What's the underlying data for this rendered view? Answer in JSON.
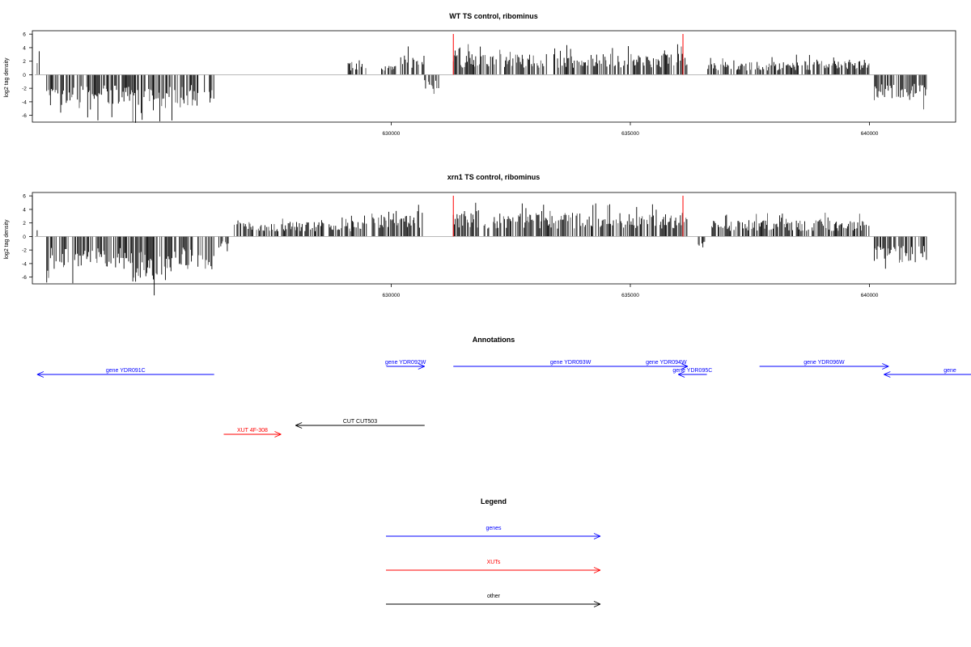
{
  "chart_data": [
    {
      "type": "bar",
      "title": "WT TS control, ribominus",
      "xlabel": "",
      "ylabel": "log2 tag density",
      "xlim": [
        622500,
        641800
      ],
      "ylim": [
        -7,
        6.5
      ],
      "x_ticks": [
        "630000",
        "635000",
        "640000"
      ],
      "y_ticks": [
        "6",
        "4",
        "2",
        "0",
        "-2",
        "-4",
        "-6"
      ],
      "marker_lines": [
        631300,
        636100
      ],
      "segments": [
        {
          "from": 622600,
          "to": 622650,
          "mean": 1.8
        },
        {
          "from": 622800,
          "to": 624600,
          "mean": -3.4
        },
        {
          "from": 624600,
          "to": 625300,
          "mean": -4.2
        },
        {
          "from": 625300,
          "to": 626300,
          "mean": -3.4
        },
        {
          "from": 629100,
          "to": 629500,
          "mean": 1.4
        },
        {
          "from": 629800,
          "to": 630100,
          "mean": 1.2
        },
        {
          "from": 630200,
          "to": 630700,
          "mean": 2.2
        },
        {
          "from": 630700,
          "to": 631000,
          "mean": -1.6
        },
        {
          "from": 631300,
          "to": 636200,
          "mean": 2.3
        },
        {
          "from": 636600,
          "to": 638200,
          "mean": 1.4
        },
        {
          "from": 638200,
          "to": 640000,
          "mean": 1.5
        },
        {
          "from": 640100,
          "to": 641200,
          "mean": -2.6
        }
      ]
    },
    {
      "type": "bar",
      "title": "xrn1 TS control, ribominus",
      "xlabel": "",
      "ylabel": "log2 tag density",
      "xlim": [
        622500,
        641800
      ],
      "ylim": [
        -7,
        6.5
      ],
      "x_ticks": [
        "630000",
        "635000",
        "640000"
      ],
      "y_ticks": [
        "6",
        "4",
        "2",
        "0",
        "-2",
        "-4",
        "-6"
      ],
      "marker_lines": [
        631300,
        636100
      ],
      "segments": [
        {
          "from": 622600,
          "to": 622650,
          "mean": 0.8
        },
        {
          "from": 622800,
          "to": 624600,
          "mean": -3.6
        },
        {
          "from": 624600,
          "to": 625300,
          "mean": -5.0
        },
        {
          "from": 625300,
          "to": 626300,
          "mean": -3.6
        },
        {
          "from": 626400,
          "to": 626600,
          "mean": -1.4
        },
        {
          "from": 626700,
          "to": 629500,
          "mean": 1.6
        },
        {
          "from": 629600,
          "to": 630700,
          "mean": 2.8
        },
        {
          "from": 631300,
          "to": 636200,
          "mean": 2.6
        },
        {
          "from": 636400,
          "to": 636600,
          "mean": -1.0
        },
        {
          "from": 636700,
          "to": 640000,
          "mean": 1.8
        },
        {
          "from": 640100,
          "to": 641200,
          "mean": -3.0
        }
      ]
    }
  ],
  "annotations": {
    "title": "Annotations",
    "xlim": [
      622500,
      641800
    ],
    "items": [
      {
        "label": "gene YDR091C",
        "start": 626300,
        "end": 622600,
        "lane": 2,
        "kind": "gene"
      },
      {
        "label": "gene YDR092W",
        "start": 629900,
        "end": 630700,
        "lane": 1,
        "kind": "gene"
      },
      {
        "label": "gene YDR093W",
        "start": 631300,
        "end": 636200,
        "lane": 1,
        "kind": "gene"
      },
      {
        "label": "gene YDR094W",
        "start": 635300,
        "end": 636200,
        "lane": 1,
        "kind": "gene"
      },
      {
        "label": "gene YDR095C",
        "start": 636600,
        "end": 636000,
        "lane": 2,
        "kind": "gene"
      },
      {
        "label": "gene YDR096W",
        "start": 637700,
        "end": 640400,
        "lane": 1,
        "kind": "gene"
      },
      {
        "label": "gene",
        "start": 642600,
        "end": 640300,
        "lane": 2,
        "kind": "gene"
      },
      {
        "label": "CUT CUT503",
        "start": 630700,
        "end": 628000,
        "lane": 3,
        "kind": "other"
      },
      {
        "label": "XUT 4F-308",
        "start": 626500,
        "end": 627700,
        "lane": 4,
        "kind": "xut"
      }
    ]
  },
  "legend": {
    "title": "Legend",
    "entries": [
      {
        "label": "genes",
        "kind": "gene"
      },
      {
        "label": "XUTs",
        "kind": "xut"
      },
      {
        "label": "other",
        "kind": "other"
      }
    ]
  },
  "colors": {
    "gene": "#0000ff",
    "xut": "#ff0000",
    "other": "#000000",
    "marker": "#ff0000",
    "baseline": "#a0a0a0",
    "bars": "#000000"
  }
}
